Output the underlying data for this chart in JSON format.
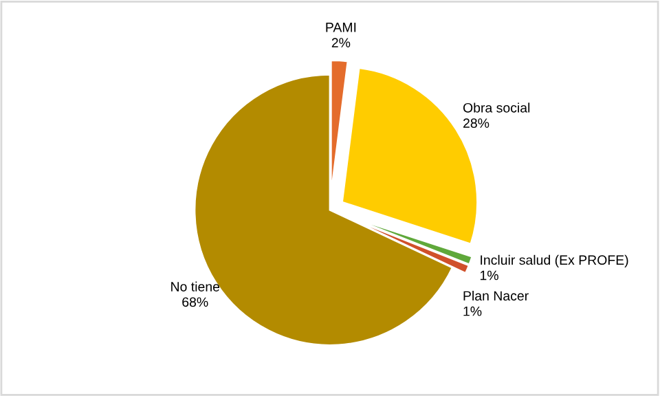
{
  "chart_data": {
    "type": "pie",
    "categories": [
      "PAMI",
      "Obra social",
      "Incluir salud (Ex PROFE)",
      "Plan Nacer",
      "No tiene"
    ],
    "values": [
      2,
      28,
      1,
      1,
      68
    ],
    "value_labels": [
      "2%",
      "28%",
      "1%",
      "1%",
      "68%"
    ],
    "colors": [
      "#e46c2c",
      "#ffcc00",
      "#5fa83a",
      "#d0502a",
      "#b38b00"
    ]
  }
}
